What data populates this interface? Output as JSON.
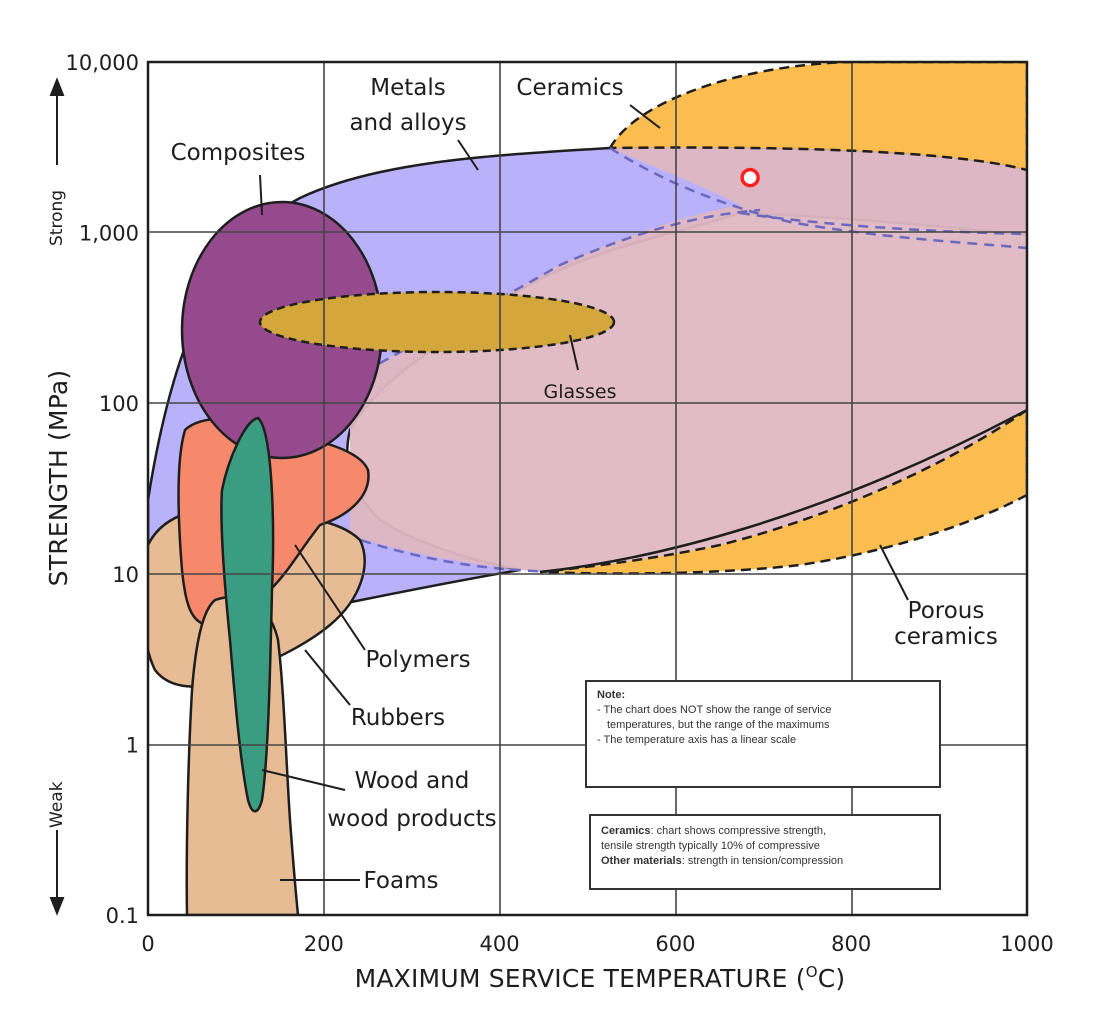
{
  "chart_data": {
    "type": "ashby-region-chart",
    "title": "",
    "xlabel": "MAXIMUM SERVICE TEMPERATURE",
    "xlabel_unit": "(",
    "xlabel_unit_sup": "O",
    "xlabel_unit_end": "C)",
    "ylabel": "STRENGTH (MPa)",
    "xlim": [
      0,
      1000
    ],
    "ylim": [
      0.1,
      10000
    ],
    "yscale": "log",
    "x_ticks": [
      0,
      200,
      400,
      600,
      800,
      1000
    ],
    "x_tick_labels": [
      "0",
      "200",
      "400",
      "600",
      "800",
      "1000"
    ],
    "y_ticks": [
      0.1,
      1,
      10,
      100,
      1000,
      10000
    ],
    "y_tick_labels": [
      "0.1",
      "1",
      "10",
      "100",
      "1,000",
      "10,000"
    ],
    "y_side_top": "Strong",
    "y_side_bottom": "Weak",
    "marker": {
      "x": 685,
      "y": 2100,
      "color": "#ff2020"
    },
    "regions": [
      {
        "name": "Metals and alloys",
        "label_lines": [
          "Metals",
          "and alloys"
        ],
        "color": "#b9b2fb",
        "x_range": [
          0,
          1000
        ],
        "y_range": [
          5,
          3000
        ]
      },
      {
        "name": "Ceramics",
        "label_lines": [
          "Ceramics"
        ],
        "color": "#fbbd4f",
        "x_range": [
          520,
          1000
        ],
        "y_range": [
          1000,
          10000
        ]
      },
      {
        "name": "Porous ceramics",
        "label_lines": [
          "Porous",
          "ceramics"
        ],
        "color": "#fbbd4f",
        "x_range": [
          470,
          1000
        ],
        "y_range": [
          10,
          100
        ]
      },
      {
        "name": "Composites",
        "label_lines": [
          "Composites"
        ],
        "color": "#954a8e",
        "x_range": [
          45,
          265
        ],
        "y_range": [
          50,
          1500
        ]
      },
      {
        "name": "Glasses",
        "label_lines": [
          "Glasses"
        ],
        "color": "#d3a73b",
        "x_range": [
          130,
          530
        ],
        "y_range": [
          180,
          500
        ]
      },
      {
        "name": "Polymers",
        "label_lines": [
          "Polymers"
        ],
        "color": "#f6886c",
        "x_range": [
          30,
          250
        ],
        "y_range": [
          5,
          80
        ]
      },
      {
        "name": "Rubbers",
        "label_lines": [
          "Rubbers"
        ],
        "color": "#e7bb94",
        "x_range": [
          0,
          250
        ],
        "y_range": [
          2.3,
          16
        ]
      },
      {
        "name": "Wood and wood products",
        "label_lines": [
          "Wood and",
          "wood products"
        ],
        "color": "#3a9c80",
        "x_range": [
          80,
          140
        ],
        "y_range": [
          0.4,
          80
        ]
      },
      {
        "name": "Foams",
        "label_lines": [
          "Foams"
        ],
        "color": "#e7bb94",
        "x_range": [
          45,
          170
        ],
        "y_range": [
          0.1,
          6
        ]
      }
    ]
  },
  "note": {
    "title": "Note:",
    "line1": "- The chart does NOT show the range of service",
    "line1b": "temperatures, but the range of the maximums",
    "line2": "- The temperature axis has a linear scale"
  },
  "ceramics_note": {
    "label1": "Ceramics",
    "text1": ": chart shows compressive strength,",
    "text1b": "tensile strength typically 10% of compressive",
    "label2": "Other materials",
    "text2": ": strength in tension/compression"
  }
}
